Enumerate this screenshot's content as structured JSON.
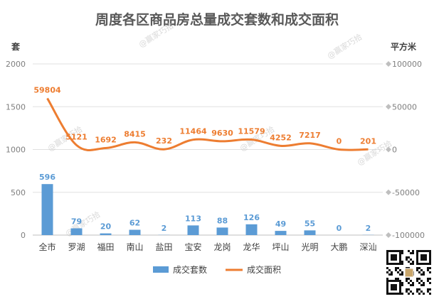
{
  "chart_data": {
    "type": "bar",
    "title": "周度各区商品房总量成交套数和成交面积",
    "left_unit": "套",
    "right_unit": "平方米",
    "categories": [
      "全市",
      "罗湖",
      "福田",
      "南山",
      "盐田",
      "宝安",
      "龙岗",
      "龙华",
      "坪山",
      "光明",
      "大鹏",
      "深汕"
    ],
    "series": [
      {
        "name": "成交套数",
        "type": "bar",
        "axis": "left",
        "color": "#5b9bd5",
        "values": [
          596,
          79,
          20,
          62,
          2,
          113,
          88,
          126,
          49,
          55,
          0,
          2
        ]
      },
      {
        "name": "成交面积",
        "type": "line",
        "axis": "right",
        "color": "#ed7d31",
        "values": [
          59804,
          5121,
          1692,
          8415,
          232,
          11464,
          9630,
          11579,
          4252,
          7217,
          0,
          201
        ]
      }
    ],
    "left_axis": {
      "min": 0,
      "max": 2000,
      "ticks": [
        0,
        500,
        1000,
        1500,
        2000
      ]
    },
    "right_axis": {
      "min": -100000,
      "max": 100000,
      "ticks": [
        -100000,
        -50000,
        0,
        50000,
        100000
      ]
    },
    "grid": true,
    "legend_position": "bottom"
  },
  "watermark": "@赢家巧拾",
  "qr_code": "qr-code"
}
